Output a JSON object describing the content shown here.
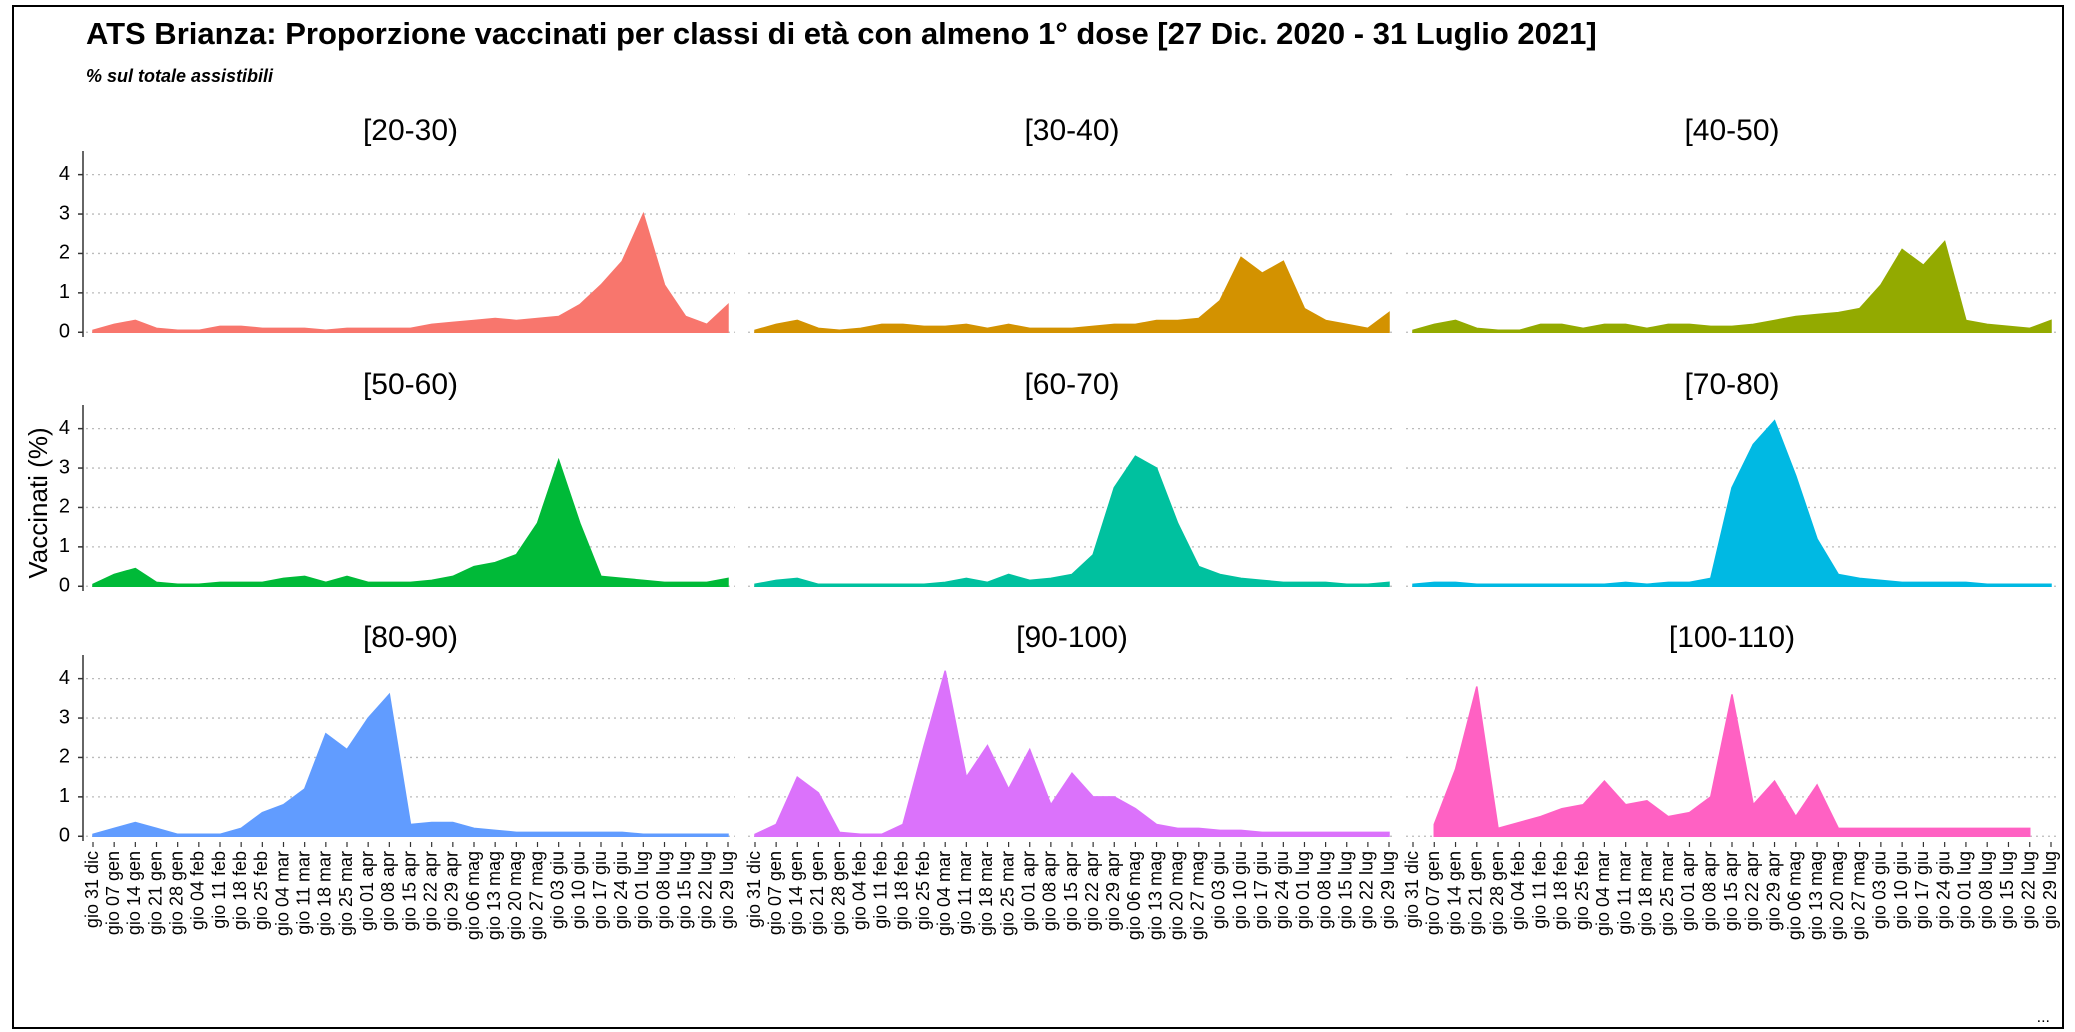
{
  "title": "ATS Brianza: Proporzione vaccinati per classi di età con almeno 1° dose [27 Dic. 2020 - 31 Luglio 2021]",
  "subtitle": "% sul totale assistibili",
  "y_label": "Vaccinati (%)",
  "footer": "...",
  "chart_data": [
    {
      "type": "area",
      "title": "[20-30)",
      "color": "#f8766d",
      "ylim": [
        -0.12,
        4.6
      ],
      "yticks": [
        0,
        1,
        2,
        3,
        4
      ],
      "grid": true,
      "categories": [
        "gio 31 dic",
        "gio 07 gen",
        "gio 14 gen",
        "gio 21 gen",
        "gio 28 gen",
        "gio 04 feb",
        "gio 11 feb",
        "gio 18 feb",
        "gio 25 feb",
        "gio 04 mar",
        "gio 11 mar",
        "gio 18 mar",
        "gio 25 mar",
        "gio 01 apr",
        "gio 08 apr",
        "gio 15 apr",
        "gio 22 apr",
        "gio 29 apr",
        "gio 06 mag",
        "gio 13 mag",
        "gio 20 mag",
        "gio 27 mag",
        "gio 03 giu",
        "gio 10 giu",
        "gio 17 giu",
        "gio 24 giu",
        "gio 01 lug",
        "gio 08 lug",
        "gio 15 lug",
        "gio 22 lug",
        "gio 29 lug"
      ],
      "values": [
        0.05,
        0.2,
        0.3,
        0.1,
        0.05,
        0.05,
        0.15,
        0.15,
        0.1,
        0.1,
        0.1,
        0.05,
        0.1,
        0.1,
        0.1,
        0.1,
        0.2,
        0.25,
        0.3,
        0.35,
        0.3,
        0.35,
        0.4,
        0.7,
        1.2,
        1.8,
        3.0,
        1.2,
        0.4,
        0.2,
        0.7
      ]
    },
    {
      "type": "area",
      "title": "[30-40)",
      "color": "#d39200",
      "ylim": [
        -0.12,
        4.6
      ],
      "yticks": [
        0,
        1,
        2,
        3,
        4
      ],
      "grid": true,
      "categories": [
        "gio 31 dic",
        "gio 07 gen",
        "gio 14 gen",
        "gio 21 gen",
        "gio 28 gen",
        "gio 04 feb",
        "gio 11 feb",
        "gio 18 feb",
        "gio 25 feb",
        "gio 04 mar",
        "gio 11 mar",
        "gio 18 mar",
        "gio 25 mar",
        "gio 01 apr",
        "gio 08 apr",
        "gio 15 apr",
        "gio 22 apr",
        "gio 29 apr",
        "gio 06 mag",
        "gio 13 mag",
        "gio 20 mag",
        "gio 27 mag",
        "gio 03 giu",
        "gio 10 giu",
        "gio 17 giu",
        "gio 24 giu",
        "gio 01 lug",
        "gio 08 lug",
        "gio 15 lug",
        "gio 22 lug",
        "gio 29 lug"
      ],
      "values": [
        0.05,
        0.2,
        0.3,
        0.1,
        0.05,
        0.1,
        0.2,
        0.2,
        0.15,
        0.15,
        0.2,
        0.1,
        0.2,
        0.1,
        0.1,
        0.1,
        0.15,
        0.2,
        0.2,
        0.3,
        0.3,
        0.35,
        0.8,
        1.9,
        1.5,
        1.8,
        0.6,
        0.3,
        0.2,
        0.1,
        0.5
      ]
    },
    {
      "type": "area",
      "title": "[40-50)",
      "color": "#93aa00",
      "ylim": [
        -0.12,
        4.6
      ],
      "yticks": [
        0,
        1,
        2,
        3,
        4
      ],
      "grid": true,
      "categories": [
        "gio 31 dic",
        "gio 07 gen",
        "gio 14 gen",
        "gio 21 gen",
        "gio 28 gen",
        "gio 04 feb",
        "gio 11 feb",
        "gio 18 feb",
        "gio 25 feb",
        "gio 04 mar",
        "gio 11 mar",
        "gio 18 mar",
        "gio 25 mar",
        "gio 01 apr",
        "gio 08 apr",
        "gio 15 apr",
        "gio 22 apr",
        "gio 29 apr",
        "gio 06 mag",
        "gio 13 mag",
        "gio 20 mag",
        "gio 27 mag",
        "gio 03 giu",
        "gio 10 giu",
        "gio 17 giu",
        "gio 24 giu",
        "gio 01 lug",
        "gio 08 lug",
        "gio 15 lug",
        "gio 22 lug",
        "gio 29 lug"
      ],
      "values": [
        0.05,
        0.2,
        0.3,
        0.1,
        0.05,
        0.05,
        0.2,
        0.2,
        0.1,
        0.2,
        0.2,
        0.1,
        0.2,
        0.2,
        0.15,
        0.15,
        0.2,
        0.3,
        0.4,
        0.45,
        0.5,
        0.6,
        1.2,
        2.1,
        1.7,
        2.3,
        0.3,
        0.2,
        0.15,
        0.1,
        0.3
      ]
    },
    {
      "type": "area",
      "title": "[50-60)",
      "color": "#00ba38",
      "ylim": [
        -0.12,
        4.6
      ],
      "yticks": [
        0,
        1,
        2,
        3,
        4
      ],
      "grid": true,
      "categories": [
        "gio 31 dic",
        "gio 07 gen",
        "gio 14 gen",
        "gio 21 gen",
        "gio 28 gen",
        "gio 04 feb",
        "gio 11 feb",
        "gio 18 feb",
        "gio 25 feb",
        "gio 04 mar",
        "gio 11 mar",
        "gio 18 mar",
        "gio 25 mar",
        "gio 01 apr",
        "gio 08 apr",
        "gio 15 apr",
        "gio 22 apr",
        "gio 29 apr",
        "gio 06 mag",
        "gio 13 mag",
        "gio 20 mag",
        "gio 27 mag",
        "gio 03 giu",
        "gio 10 giu",
        "gio 17 giu",
        "gio 24 giu",
        "gio 01 lug",
        "gio 08 lug",
        "gio 15 lug",
        "gio 22 lug",
        "gio 29 lug"
      ],
      "values": [
        0.05,
        0.3,
        0.45,
        0.1,
        0.05,
        0.05,
        0.1,
        0.1,
        0.1,
        0.2,
        0.25,
        0.1,
        0.25,
        0.1,
        0.1,
        0.1,
        0.15,
        0.25,
        0.5,
        0.6,
        0.8,
        1.6,
        3.2,
        1.6,
        0.25,
        0.2,
        0.15,
        0.1,
        0.1,
        0.1,
        0.2
      ]
    },
    {
      "type": "area",
      "title": "[60-70)",
      "color": "#00c19f",
      "ylim": [
        -0.12,
        4.6
      ],
      "yticks": [
        0,
        1,
        2,
        3,
        4
      ],
      "grid": true,
      "categories": [
        "gio 31 dic",
        "gio 07 gen",
        "gio 14 gen",
        "gio 21 gen",
        "gio 28 gen",
        "gio 04 feb",
        "gio 11 feb",
        "gio 18 feb",
        "gio 25 feb",
        "gio 04 mar",
        "gio 11 mar",
        "gio 18 mar",
        "gio 25 mar",
        "gio 01 apr",
        "gio 08 apr",
        "gio 15 apr",
        "gio 22 apr",
        "gio 29 apr",
        "gio 06 mag",
        "gio 13 mag",
        "gio 20 mag",
        "gio 27 mag",
        "gio 03 giu",
        "gio 10 giu",
        "gio 17 giu",
        "gio 24 giu",
        "gio 01 lug",
        "gio 08 lug",
        "gio 15 lug",
        "gio 22 lug",
        "gio 29 lug"
      ],
      "values": [
        0.05,
        0.15,
        0.2,
        0.05,
        0.05,
        0.05,
        0.05,
        0.05,
        0.05,
        0.1,
        0.2,
        0.1,
        0.3,
        0.15,
        0.2,
        0.3,
        0.8,
        2.5,
        3.3,
        3.0,
        1.6,
        0.5,
        0.3,
        0.2,
        0.15,
        0.1,
        0.1,
        0.1,
        0.05,
        0.05,
        0.1
      ]
    },
    {
      "type": "area",
      "title": "[70-80)",
      "color": "#00b9e3",
      "ylim": [
        -0.12,
        4.6
      ],
      "yticks": [
        0,
        1,
        2,
        3,
        4
      ],
      "grid": true,
      "categories": [
        "gio 31 dic",
        "gio 07 gen",
        "gio 14 gen",
        "gio 21 gen",
        "gio 28 gen",
        "gio 04 feb",
        "gio 11 feb",
        "gio 18 feb",
        "gio 25 feb",
        "gio 04 mar",
        "gio 11 mar",
        "gio 18 mar",
        "gio 25 mar",
        "gio 01 apr",
        "gio 08 apr",
        "gio 15 apr",
        "gio 22 apr",
        "gio 29 apr",
        "gio 06 mag",
        "gio 13 mag",
        "gio 20 mag",
        "gio 27 mag",
        "gio 03 giu",
        "gio 10 giu",
        "gio 17 giu",
        "gio 24 giu",
        "gio 01 lug",
        "gio 08 lug",
        "gio 15 lug",
        "gio 22 lug",
        "gio 29 lug"
      ],
      "values": [
        0.05,
        0.1,
        0.1,
        0.05,
        0.05,
        0.05,
        0.05,
        0.05,
        0.05,
        0.05,
        0.1,
        0.05,
        0.1,
        0.1,
        0.2,
        2.5,
        3.6,
        4.2,
        2.8,
        1.2,
        0.3,
        0.2,
        0.15,
        0.1,
        0.1,
        0.1,
        0.1,
        0.05,
        0.05,
        0.05,
        0.05
      ]
    },
    {
      "type": "area",
      "title": "[80-90)",
      "color": "#619cff",
      "ylim": [
        -0.12,
        4.6
      ],
      "yticks": [
        0,
        1,
        2,
        3,
        4
      ],
      "grid": true,
      "categories": [
        "gio 31 dic",
        "gio 07 gen",
        "gio 14 gen",
        "gio 21 gen",
        "gio 28 gen",
        "gio 04 feb",
        "gio 11 feb",
        "gio 18 feb",
        "gio 25 feb",
        "gio 04 mar",
        "gio 11 mar",
        "gio 18 mar",
        "gio 25 mar",
        "gio 01 apr",
        "gio 08 apr",
        "gio 15 apr",
        "gio 22 apr",
        "gio 29 apr",
        "gio 06 mag",
        "gio 13 mag",
        "gio 20 mag",
        "gio 27 mag",
        "gio 03 giu",
        "gio 10 giu",
        "gio 17 giu",
        "gio 24 giu",
        "gio 01 lug",
        "gio 08 lug",
        "gio 15 lug",
        "gio 22 lug",
        "gio 29 lug"
      ],
      "values": [
        0.05,
        0.2,
        0.35,
        0.2,
        0.05,
        0.05,
        0.05,
        0.2,
        0.6,
        0.8,
        1.2,
        2.6,
        2.2,
        3.0,
        3.6,
        0.3,
        0.35,
        0.35,
        0.2,
        0.15,
        0.1,
        0.1,
        0.1,
        0.1,
        0.1,
        0.1,
        0.05,
        0.05,
        0.05,
        0.05,
        0.05
      ]
    },
    {
      "type": "area",
      "title": "[90-100)",
      "color": "#db72fb",
      "ylim": [
        -0.12,
        4.6
      ],
      "yticks": [
        0,
        1,
        2,
        3,
        4
      ],
      "grid": true,
      "categories": [
        "gio 31 dic",
        "gio 07 gen",
        "gio 14 gen",
        "gio 21 gen",
        "gio 28 gen",
        "gio 04 feb",
        "gio 11 feb",
        "gio 18 feb",
        "gio 25 feb",
        "gio 04 mar",
        "gio 11 mar",
        "gio 18 mar",
        "gio 25 mar",
        "gio 01 apr",
        "gio 08 apr",
        "gio 15 apr",
        "gio 22 apr",
        "gio 29 apr",
        "gio 06 mag",
        "gio 13 mag",
        "gio 20 mag",
        "gio 27 mag",
        "gio 03 giu",
        "gio 10 giu",
        "gio 17 giu",
        "gio 24 giu",
        "gio 01 lug",
        "gio 08 lug",
        "gio 15 lug",
        "gio 22 lug",
        "gio 29 lug"
      ],
      "values": [
        0.05,
        0.3,
        1.5,
        1.1,
        0.1,
        0.05,
        0.05,
        0.3,
        2.3,
        4.2,
        1.5,
        2.3,
        1.2,
        2.2,
        0.8,
        1.6,
        1.0,
        1.0,
        0.7,
        0.3,
        0.2,
        0.2,
        0.15,
        0.15,
        0.1,
        0.1,
        0.1,
        0.1,
        0.1,
        0.1,
        0.1
      ]
    },
    {
      "type": "area",
      "title": "[100-110)",
      "color": "#ff61c3",
      "ylim": [
        -0.12,
        4.6
      ],
      "yticks": [
        0,
        1,
        2,
        3,
        4
      ],
      "grid": true,
      "categories": [
        "gio 31 dic",
        "gio 07 gen",
        "gio 14 gen",
        "gio 21 gen",
        "gio 28 gen",
        "gio 04 feb",
        "gio 11 feb",
        "gio 18 feb",
        "gio 25 feb",
        "gio 04 mar",
        "gio 11 mar",
        "gio 18 mar",
        "gio 25 mar",
        "gio 01 apr",
        "gio 08 apr",
        "gio 15 apr",
        "gio 22 apr",
        "gio 29 apr",
        "gio 06 mag",
        "gio 13 mag",
        "gio 20 mag",
        "gio 27 mag",
        "gio 03 giu",
        "gio 10 giu",
        "gio 17 giu",
        "gio 24 giu",
        "gio 01 lug",
        "gio 08 lug",
        "gio 15 lug",
        "gio 22 lug",
        "gio 29 lug"
      ],
      "values": [
        null,
        0.3,
        1.7,
        3.8,
        0.2,
        0.35,
        0.5,
        0.7,
        0.8,
        1.4,
        0.8,
        0.9,
        0.5,
        0.6,
        1.0,
        3.6,
        0.8,
        1.4,
        0.5,
        1.3,
        0.2,
        0.2,
        0.2,
        0.2,
        0.2,
        0.2,
        0.2,
        0.2,
        0.2,
        0.2,
        null
      ]
    }
  ]
}
